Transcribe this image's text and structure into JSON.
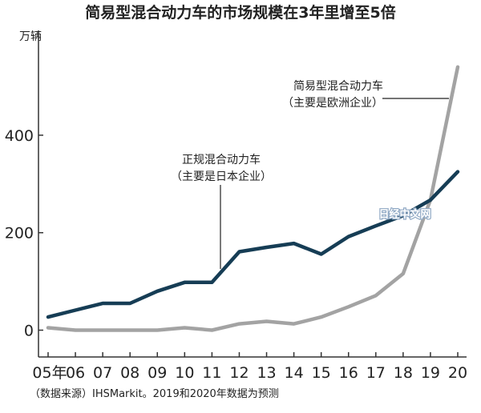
{
  "chart_data": {
    "type": "line",
    "title": "简易型混合动力车的市场规模在3年里增至5倍",
    "ylabel": "万辆",
    "xlabel": "",
    "x": [
      "05年",
      "06",
      "07",
      "08",
      "09",
      "10",
      "11",
      "12",
      "13",
      "14",
      "15",
      "16",
      "17",
      "18",
      "19",
      "20"
    ],
    "ylim": [
      -55,
      615
    ],
    "yticks": [
      0,
      200,
      400
    ],
    "grid": false,
    "series": [
      {
        "name": "正规混合动力车（主要是日本企业）",
        "color": "#163d55",
        "values": [
          27,
          41,
          55,
          55,
          80,
          98,
          98,
          161,
          170,
          178,
          156,
          192,
          214,
          235,
          267,
          325
        ]
      },
      {
        "name": "简易型混合动力车（主要是欧洲企业）",
        "color": "#a3a3a3",
        "values": [
          5,
          0,
          0,
          0,
          0,
          5,
          0,
          13,
          18,
          13,
          27,
          48,
          71,
          116,
          267,
          540
        ]
      }
    ],
    "annotations": [
      {
        "series": 0,
        "line1": "正规混合动力车",
        "line2": "（主要是日本企业）"
      },
      {
        "series": 1,
        "line1": "简易型混合动力车",
        "line2": "（主要是欧洲企业）"
      }
    ],
    "source": "（数据来源）IHSMarkit。2019和2020年数据为预测",
    "watermark": "日经中文网"
  },
  "colors": {
    "series_dark": "#163d55",
    "series_gray": "#a3a3a3",
    "axis": "#333333"
  }
}
